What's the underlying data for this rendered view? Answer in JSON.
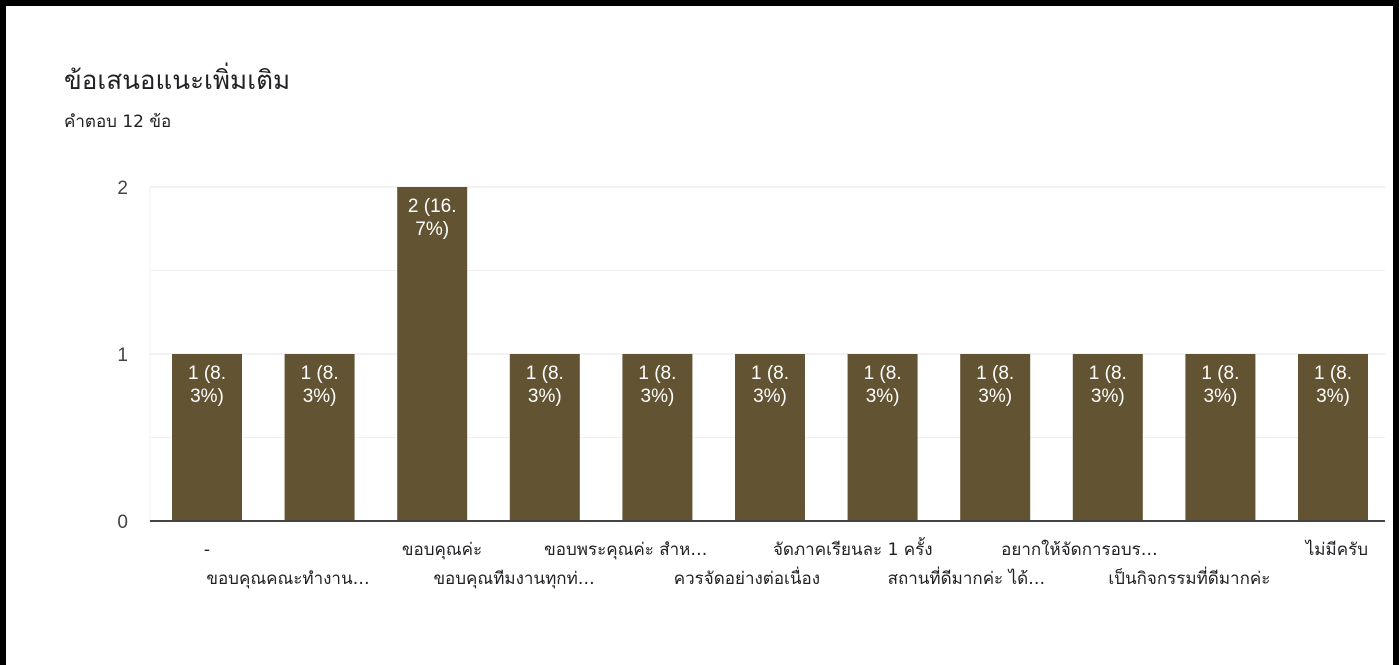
{
  "header": {
    "title": "ข้อเสนอแนะเพิ่มเติม",
    "subtitle": "คำตอบ 12 ข้อ"
  },
  "colors": {
    "bar": "#625332",
    "grid": "#e6e6e6",
    "axis": "#444444",
    "background": "#ffffff"
  },
  "chart_data": {
    "type": "bar",
    "title": "ข้อเสนอแนะเพิ่มเติม",
    "subtitle": "คำตอบ 12 ข้อ",
    "categories": [
      "-",
      "ขอบคุณคณะทำงาน…",
      "ขอบคุณค่ะ",
      "ขอบคุณทีมงานทุกท่…",
      "ขอบพระคุณค่ะ สำห…",
      "ควรจัดอย่างต่อเนื่อง",
      "จัดภาคเรียนละ 1 ครั้ง",
      "สถานที่ดีมากค่ะ ได้…",
      "อยากให้จัดการอบร…",
      "เป็นกิจกรรมที่ดีมากค่ะ",
      "ไม่มีครับ"
    ],
    "values": [
      1,
      1,
      2,
      1,
      1,
      1,
      1,
      1,
      1,
      1,
      1
    ],
    "data_labels": [
      [
        "1 (8.",
        "3%)"
      ],
      [
        "1 (8.",
        "3%)"
      ],
      [
        "2 (16.",
        "7%)"
      ],
      [
        "1 (8.",
        "3%)"
      ],
      [
        "1 (8.",
        "3%)"
      ],
      [
        "1 (8.",
        "3%)"
      ],
      [
        "1 (8.",
        "3%)"
      ],
      [
        "1 (8.",
        "3%)"
      ],
      [
        "1 (8.",
        "3%)"
      ],
      [
        "1 (8.",
        "3%)"
      ],
      [
        "1 (8.",
        "3%)"
      ]
    ],
    "yticks": [
      "0",
      "1",
      "2"
    ],
    "ylim": [
      0,
      2
    ],
    "xlabel": "",
    "ylabel": "",
    "grid": true,
    "legend": "none"
  }
}
